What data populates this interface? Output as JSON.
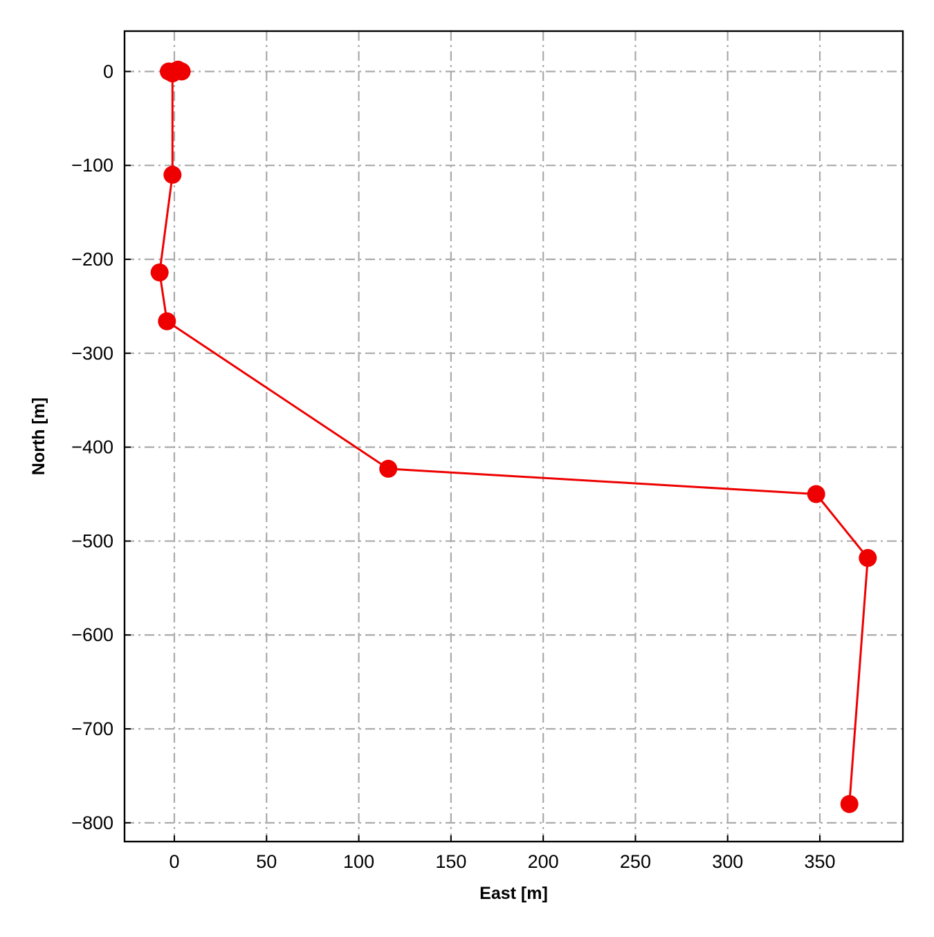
{
  "chart_data": {
    "type": "line",
    "title": "",
    "xlabel": "East [m]",
    "ylabel": "North [m]",
    "xlim": [
      -27,
      395
    ],
    "ylim": [
      -820,
      43
    ],
    "xticks": [
      0,
      50,
      100,
      150,
      200,
      250,
      300,
      350
    ],
    "yticks": [
      0,
      -100,
      -200,
      -300,
      -400,
      -500,
      -600,
      -700,
      -800
    ],
    "xtick_labels": [
      "0",
      "50",
      "100",
      "150",
      "200",
      "250",
      "300",
      "350"
    ],
    "ytick_labels": [
      "0",
      "−100",
      "−200",
      "−300",
      "−400",
      "−500",
      "−600",
      "−700",
      "−800"
    ],
    "grid": true,
    "legend": "none",
    "series": [
      {
        "color": "#ee0000",
        "marker": "circle",
        "points": [
          {
            "x": 0,
            "y": 0
          },
          {
            "x": -3,
            "y": 0
          },
          {
            "x": 2,
            "y": 2
          },
          {
            "x": 4,
            "y": 0
          },
          {
            "x": -1,
            "y": -2
          },
          {
            "x": -1,
            "y": -110
          },
          {
            "x": -8,
            "y": -214
          },
          {
            "x": -4,
            "y": -266
          },
          {
            "x": 116,
            "y": -423
          },
          {
            "x": 348,
            "y": -450
          },
          {
            "x": 376,
            "y": -518
          },
          {
            "x": 366,
            "y": -780
          }
        ]
      }
    ]
  }
}
